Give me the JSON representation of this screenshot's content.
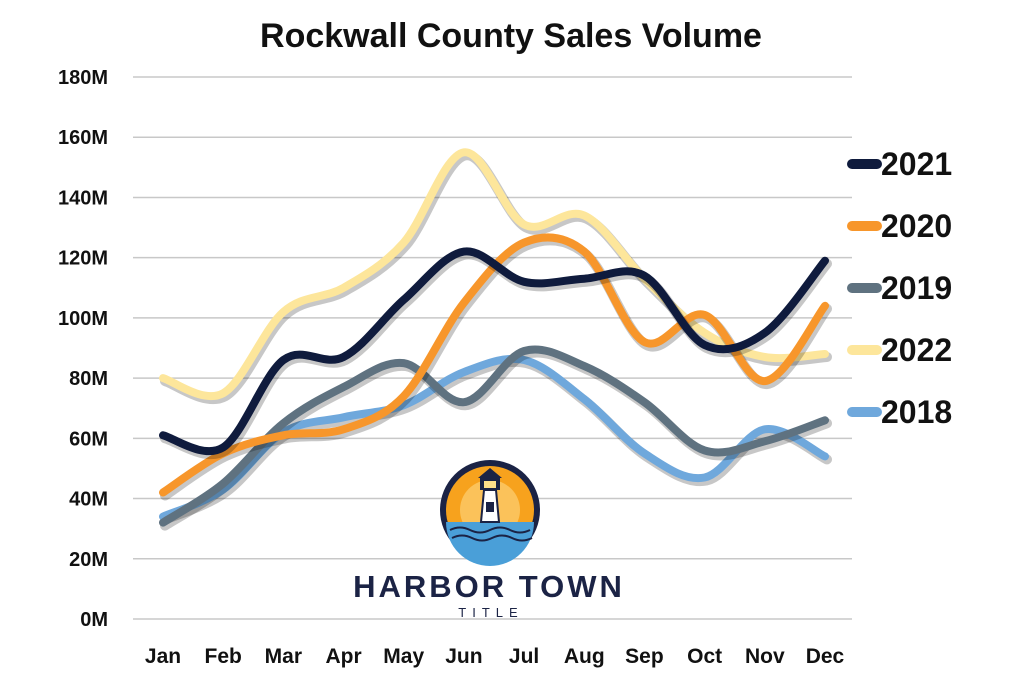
{
  "chart_data": {
    "type": "line",
    "title": "Rockwall County Sales Volume",
    "categories": [
      "Jan",
      "Feb",
      "Mar",
      "Apr",
      "May",
      "Jun",
      "Jul",
      "Aug",
      "Sep",
      "Oct",
      "Nov",
      "Dec"
    ],
    "y_ticks": [
      "0M",
      "20M",
      "40M",
      "60M",
      "80M",
      "100M",
      "120M",
      "140M",
      "160M",
      "180M"
    ],
    "ylim": [
      0,
      180
    ],
    "y_unit": "M",
    "grid": "horizontal",
    "legend": "right",
    "series": [
      {
        "name": "2018",
        "color": "#6fa8dc",
        "values": [
          34,
          43,
          62,
          67,
          71,
          82,
          86,
          73,
          55,
          47,
          63,
          54
        ]
      },
      {
        "name": "2022",
        "color": "#fde69b",
        "values": [
          80,
          75,
          102,
          110,
          125,
          155,
          131,
          134,
          113,
          95,
          87,
          88
        ]
      },
      {
        "name": "2019",
        "color": "#5f7280",
        "values": [
          32,
          45,
          65,
          77,
          85,
          72,
          89,
          84,
          72,
          56,
          59,
          66
        ]
      },
      {
        "name": "2020",
        "color": "#f7962b",
        "values": [
          42,
          55,
          61,
          63,
          74,
          105,
          125,
          122,
          92,
          101,
          79,
          104
        ]
      },
      {
        "name": "2021",
        "color": "#0f1b3d",
        "values": [
          61,
          57,
          86,
          87,
          106,
          122,
          112,
          113,
          114,
          91,
          95,
          119
        ]
      }
    ],
    "legend_order": [
      "2021",
      "2020",
      "2019",
      "2022",
      "2018"
    ]
  },
  "logo": {
    "name": "HARBOR TOWN",
    "subtitle": "TITLE",
    "icon": "lighthouse-icon",
    "colors": {
      "ring": "#1b2345",
      "sun": "#f7a21d",
      "water": "#4a9fd8"
    }
  }
}
